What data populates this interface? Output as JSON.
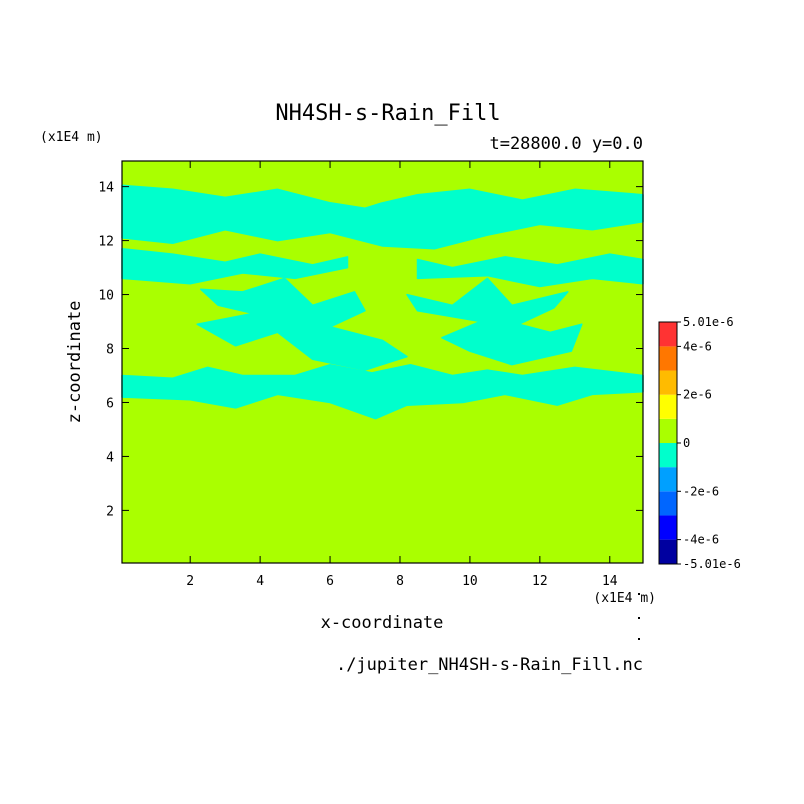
{
  "chart_data": {
    "type": "heatmap",
    "title": "NH4SH-s-Rain_Fill",
    "subtitle": "t=28800.0 y=0.0",
    "xlabel": "x-coordinate",
    "ylabel": "z-coordinate",
    "x_unit": "(x1E4 m)",
    "y_unit": "(x1E4 m)",
    "source_file": "./jupiter_NH4SH-s-Rain_Fill.nc",
    "xlim": [
      0.05,
      14.95
    ],
    "ylim": [
      0.05,
      14.95
    ],
    "x_ticks": [
      2,
      4,
      6,
      8,
      10,
      12,
      14
    ],
    "y_ticks": [
      2,
      4,
      6,
      8,
      10,
      12,
      14
    ],
    "x_tick_labels": [
      "2",
      "4",
      "6",
      "8",
      "10",
      "12",
      "14"
    ],
    "y_tick_labels": [
      "2",
      "4",
      "6",
      "8",
      "10",
      "12",
      "14"
    ],
    "background_value": 0,
    "colorbar": {
      "min": -5.01e-06,
      "max": 5.01e-06,
      "levels": [
        -5.01e-06,
        -4e-06,
        -3e-06,
        -2e-06,
        -1e-06,
        0,
        1e-06,
        2e-06,
        3e-06,
        4e-06,
        5.01e-06
      ],
      "colors": [
        "#0000a0",
        "#0000ff",
        "#0066ff",
        "#00a0ff",
        "#00ffcc",
        "#aaff00",
        "#ffff00",
        "#ffbb00",
        "#ff7700",
        "#ff3333"
      ],
      "tick_values": [
        5.01e-06,
        4e-06,
        2e-06,
        0,
        -2e-06,
        -4e-06,
        -5.01e-06
      ],
      "tick_labels": [
        "5.01e-6",
        "4e-6",
        "2e-6",
        "0",
        "-2e-6",
        "-4e-6",
        "-5.01e-6"
      ]
    },
    "negative_regions": [
      {
        "value": -5e-07,
        "points": [
          [
            0.05,
            14.05
          ],
          [
            1.5,
            13.9
          ],
          [
            3.0,
            13.6
          ],
          [
            4.5,
            13.9
          ],
          [
            6.0,
            13.4
          ],
          [
            7.0,
            13.2
          ],
          [
            7.5,
            13.4
          ],
          [
            8.5,
            13.7
          ],
          [
            10.0,
            13.9
          ],
          [
            11.5,
            13.5
          ],
          [
            13.0,
            13.9
          ],
          [
            14.95,
            13.7
          ],
          [
            14.95,
            12.7
          ],
          [
            13.5,
            12.4
          ],
          [
            12.0,
            12.6
          ],
          [
            10.5,
            12.2
          ],
          [
            9.0,
            11.7
          ],
          [
            7.5,
            11.8
          ],
          [
            6.0,
            12.3
          ],
          [
            4.5,
            12.0
          ],
          [
            3.0,
            12.4
          ],
          [
            1.5,
            11.9
          ],
          [
            0.05,
            12.1
          ]
        ]
      },
      {
        "value": -5e-07,
        "points": [
          [
            0.05,
            11.7
          ],
          [
            1.5,
            11.5
          ],
          [
            3.0,
            11.2
          ],
          [
            4.0,
            11.5
          ],
          [
            5.5,
            11.1
          ],
          [
            6.5,
            11.4
          ],
          [
            6.5,
            11.0
          ],
          [
            5.0,
            10.6
          ],
          [
            3.5,
            10.8
          ],
          [
            2.0,
            10.4
          ],
          [
            0.05,
            10.6
          ]
        ]
      },
      {
        "value": -5e-07,
        "points": [
          [
            8.5,
            11.3
          ],
          [
            9.5,
            11.0
          ],
          [
            11.0,
            11.4
          ],
          [
            12.5,
            11.1
          ],
          [
            14.0,
            11.5
          ],
          [
            14.95,
            11.3
          ],
          [
            14.95,
            10.4
          ],
          [
            13.5,
            10.6
          ],
          [
            12.0,
            10.3
          ],
          [
            10.5,
            10.7
          ],
          [
            8.5,
            10.6
          ]
        ]
      },
      {
        "value": -5e-07,
        "points": [
          [
            2.3,
            10.2
          ],
          [
            3.5,
            10.1
          ],
          [
            4.7,
            10.6
          ],
          [
            5.5,
            9.6
          ],
          [
            6.7,
            10.1
          ],
          [
            7.0,
            9.4
          ],
          [
            6.0,
            8.8
          ],
          [
            7.5,
            8.3
          ],
          [
            8.2,
            7.7
          ],
          [
            7.0,
            7.2
          ],
          [
            5.5,
            7.6
          ],
          [
            4.5,
            8.6
          ],
          [
            3.3,
            8.1
          ],
          [
            2.2,
            8.9
          ],
          [
            3.8,
            9.3
          ],
          [
            2.8,
            9.6
          ]
        ]
      },
      {
        "value": -5e-07,
        "points": [
          [
            8.2,
            10.0
          ],
          [
            9.5,
            9.6
          ],
          [
            10.5,
            10.6
          ],
          [
            11.2,
            9.6
          ],
          [
            12.8,
            10.1
          ],
          [
            12.4,
            9.5
          ],
          [
            11.4,
            8.9
          ],
          [
            12.3,
            8.6
          ],
          [
            13.2,
            8.9
          ],
          [
            12.9,
            7.9
          ],
          [
            11.2,
            7.4
          ],
          [
            10.0,
            7.9
          ],
          [
            9.2,
            8.4
          ],
          [
            10.3,
            9.0
          ],
          [
            8.5,
            9.4
          ]
        ]
      },
      {
        "value": -5e-07,
        "points": [
          [
            0.05,
            7.0
          ],
          [
            1.5,
            6.9
          ],
          [
            2.5,
            7.3
          ],
          [
            3.5,
            7.0
          ],
          [
            5.0,
            7.0
          ],
          [
            6.0,
            7.4
          ],
          [
            7.2,
            7.1
          ],
          [
            8.3,
            7.4
          ],
          [
            9.5,
            7.0
          ],
          [
            10.5,
            7.2
          ],
          [
            11.5,
            7.0
          ],
          [
            13.0,
            7.3
          ],
          [
            14.95,
            7.0
          ],
          [
            14.95,
            6.4
          ],
          [
            13.5,
            6.3
          ],
          [
            12.5,
            5.9
          ],
          [
            11.0,
            6.3
          ],
          [
            9.8,
            6.0
          ],
          [
            8.2,
            5.9
          ],
          [
            7.3,
            5.4
          ],
          [
            6.0,
            6.0
          ],
          [
            4.5,
            6.3
          ],
          [
            3.3,
            5.8
          ],
          [
            2.0,
            6.1
          ],
          [
            0.05,
            6.2
          ]
        ]
      }
    ]
  }
}
